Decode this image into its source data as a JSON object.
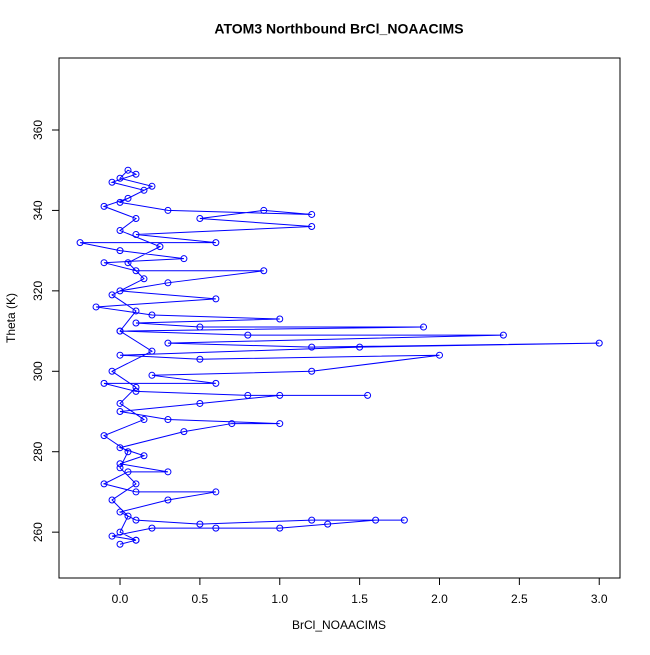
{
  "chart_data": {
    "type": "line",
    "title": "ATOM3 Northbound BrCl_NOAACIMS",
    "x_label": "BrCl_NOAACIMS",
    "y_label": "Theta (K)",
    "xlim": [
      -0.382,
      3.13
    ],
    "ylim": [
      248.6,
      377.9
    ],
    "xticks": [
      {
        "value": 0,
        "label": "0.0"
      },
      {
        "value": 0.5,
        "label": "0.5"
      },
      {
        "value": 1,
        "label": "1.0"
      },
      {
        "value": 1.5,
        "label": "1.5"
      },
      {
        "value": 2,
        "label": "2.0"
      },
      {
        "value": 2.5,
        "label": "2.5"
      },
      {
        "value": 3,
        "label": "3.0"
      }
    ],
    "yticks": [
      260,
      280,
      300,
      320,
      340,
      360
    ],
    "markers": true,
    "series": [
      {
        "color": "#0000ff",
        "x": [
          0.0,
          0.1,
          -0.05,
          0.2,
          0.6,
          1.0,
          1.3,
          1.6,
          1.78,
          1.2,
          0.5,
          0.1,
          0.0,
          0.3,
          0.6,
          0.1,
          -0.1,
          0.05,
          0.3,
          0.0,
          0.15,
          0.0,
          0.4,
          0.7,
          1.0,
          0.3,
          0.0,
          0.5,
          1.0,
          1.55,
          0.8,
          0.1,
          -0.1,
          0.6,
          0.2,
          1.2,
          2.0,
          0.5,
          0.0,
          1.5,
          3.0,
          1.2,
          0.3,
          2.4,
          0.8,
          0.0,
          1.9,
          0.5,
          0.1,
          1.0,
          0.2,
          -0.15,
          0.6,
          0.0,
          0.3,
          0.9,
          0.1,
          -0.1,
          0.4,
          0.0,
          -0.25,
          0.6,
          0.1,
          1.2,
          0.5,
          0.9,
          1.2,
          0.3,
          0.0,
          0.15,
          -0.05,
          0.1,
          0.05,
          0.0,
          0.2,
          0.05,
          -0.1,
          0.1,
          0.0,
          0.25,
          0.05,
          0.15,
          -0.05,
          0.1,
          0.0,
          0.2,
          -0.05,
          0.1,
          0.0,
          0.15,
          -0.1,
          0.05,
          0.0,
          0.1,
          -0.05,
          0.05,
          0.0,
          0.1
        ],
        "values": [
          257,
          258,
          259,
          261,
          261,
          261,
          262,
          263,
          263,
          263,
          262,
          263,
          265,
          268,
          270,
          270,
          272,
          275,
          275,
          277,
          279,
          281,
          285,
          287,
          287,
          288,
          290,
          292,
          294,
          294,
          294,
          295,
          297,
          297,
          299,
          300,
          304,
          303,
          304,
          306,
          307,
          306,
          307,
          309,
          309,
          310,
          311,
          311,
          312,
          313,
          314,
          316,
          318,
          320,
          322,
          325,
          325,
          327,
          328,
          330,
          332,
          332,
          334,
          336,
          338,
          340,
          339,
          340,
          342,
          345,
          347,
          349,
          350,
          348,
          346,
          343,
          341,
          338,
          335,
          331,
          327,
          323,
          319,
          315,
          310,
          305,
          300,
          296,
          292,
          288,
          284,
          280,
          276,
          272,
          268,
          264,
          260,
          258
        ]
      }
    ]
  }
}
